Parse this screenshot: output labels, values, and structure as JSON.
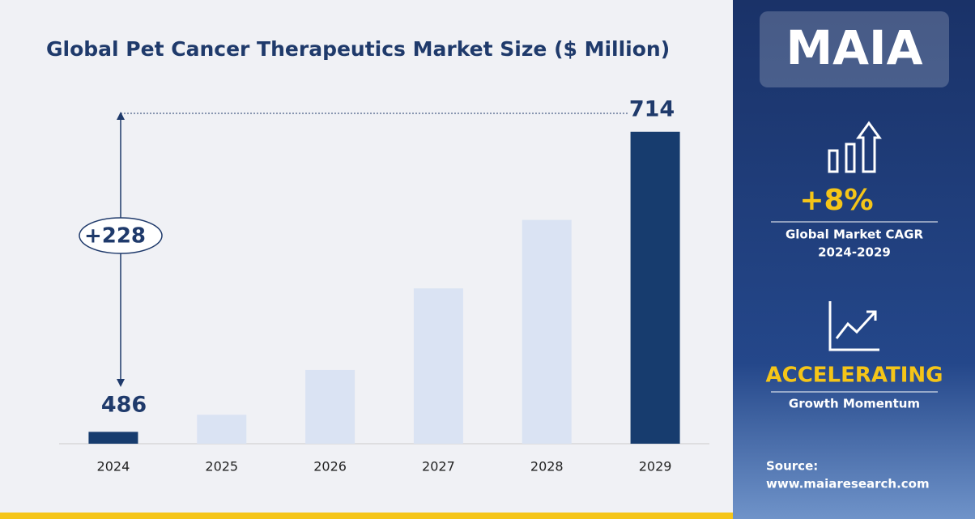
{
  "chart_data": {
    "type": "bar",
    "title": "Global Pet Cancer Therapeutics Market Size ($ Million)",
    "categories": [
      "2024",
      "2025",
      "2026",
      "2027",
      "2028",
      "2029"
    ],
    "values": [
      486,
      499,
      533,
      595,
      647,
      714
    ],
    "colors": [
      "#173c6e",
      "#dae3f3",
      "#dae3f3",
      "#dae3f3",
      "#dae3f3",
      "#173c6e"
    ],
    "ylim": [
      477,
      728
    ],
    "annotation": "+228"
  },
  "panel": {
    "logo": "MAIA",
    "cagr_value": "+8%",
    "cagr_label": "Global Market CAGR",
    "cagr_period": "2024-2029",
    "momentum_value": "ACCELERATING",
    "momentum_label": "Growth Momentum",
    "source_label": "Source:",
    "source_url": "www.maiaresearch.com"
  }
}
